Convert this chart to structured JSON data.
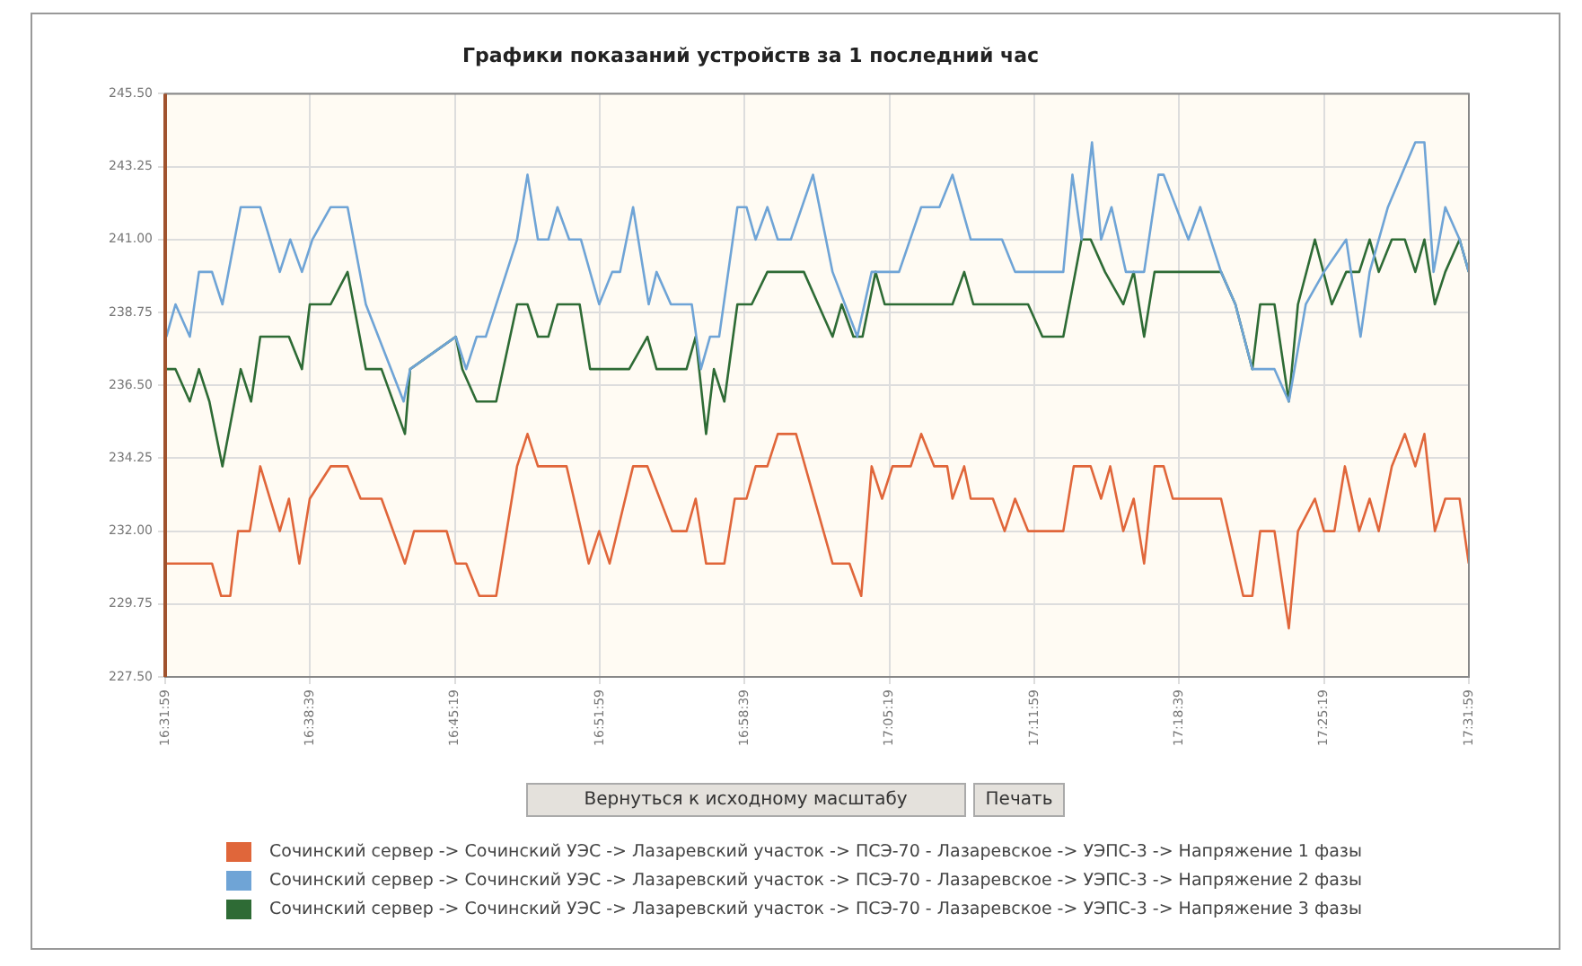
{
  "chart_data": {
    "type": "line",
    "title": "Графики показаний устройств за 1 последний час",
    "xlim": [
      16.5331,
      17.5331
    ],
    "xticks": [
      {
        "value": 16.5331,
        "label": "16:31:59"
      },
      {
        "value": 16.6442,
        "label": "16:38:39"
      },
      {
        "value": 16.7553,
        "label": "16:45:19"
      },
      {
        "value": 16.8664,
        "label": "16:51:59"
      },
      {
        "value": 16.9775,
        "label": "16:58:39"
      },
      {
        "value": 17.0886,
        "label": "17:05:19"
      },
      {
        "value": 17.1997,
        "label": "17:11:59"
      },
      {
        "value": 17.3108,
        "label": "17:18:39"
      },
      {
        "value": 17.4219,
        "label": "17:25:19"
      },
      {
        "value": 17.5331,
        "label": "17:31:59"
      }
    ],
    "ylim": [
      227.5,
      245.5
    ],
    "yticks": [
      {
        "value": 227.5,
        "label": "227.50"
      },
      {
        "value": 229.75,
        "label": "229.75"
      },
      {
        "value": 232,
        "label": "232.00"
      },
      {
        "value": 234.25,
        "label": "234.25"
      },
      {
        "value": 236.5,
        "label": "236.50"
      },
      {
        "value": 238.75,
        "label": "238.75"
      },
      {
        "value": 241,
        "label": "241.00"
      },
      {
        "value": 243.25,
        "label": "243.25"
      },
      {
        "value": 245.5,
        "label": "245.50"
      }
    ],
    "grid": true,
    "legend": "bottom",
    "marker": "none",
    "line_style": "solid",
    "annotations": [
      "Вернуться к исходному масштабу",
      "Печать"
    ],
    "series": [
      {
        "name": "Сочинский сервер -> Сочинский УЭС -> Лазаревский участок -> ПСЭ-70 - Лазаревское -> УЭПС-3 -> Напряжение 1 фазы",
        "color": "#e0663a",
        "x": [
          16.534,
          16.569,
          16.576,
          16.583,
          16.589,
          16.598,
          16.606,
          16.621,
          16.628,
          16.636,
          16.644,
          16.66,
          16.673,
          16.683,
          16.699,
          16.717,
          16.724,
          16.749,
          16.756,
          16.764,
          16.774,
          16.787,
          16.803,
          16.811,
          16.819,
          16.841,
          16.858,
          16.866,
          16.874,
          16.892,
          16.903,
          16.922,
          16.933,
          16.94,
          16.948,
          16.962,
          16.97,
          16.979,
          16.986,
          16.995,
          17.003,
          17.017,
          17.045,
          17.058,
          17.067,
          17.075,
          17.083,
          17.091,
          17.105,
          17.113,
          17.123,
          17.133,
          17.137,
          17.146,
          17.151,
          17.168,
          17.177,
          17.185,
          17.195,
          17.222,
          17.23,
          17.243,
          17.251,
          17.258,
          17.268,
          17.276,
          17.284,
          17.292,
          17.299,
          17.306,
          17.343,
          17.36,
          17.367,
          17.373,
          17.384,
          17.395,
          17.402,
          17.415,
          17.422,
          17.43,
          17.438,
          17.449,
          17.457,
          17.464,
          17.474,
          17.484,
          17.492,
          17.499,
          17.507,
          17.515,
          17.526,
          17.533
        ],
        "values": [
          231,
          231,
          230,
          230,
          232,
          232,
          234,
          232,
          233,
          231,
          233,
          234,
          234,
          233,
          233,
          231,
          232,
          232,
          231,
          231,
          230,
          230,
          234,
          235,
          234,
          234,
          231,
          232,
          231,
          234,
          234,
          232,
          232,
          233,
          231,
          231,
          233,
          233,
          234,
          234,
          235,
          235,
          231,
          231,
          230,
          234,
          233,
          234,
          234,
          235,
          234,
          234,
          233,
          234,
          233,
          233,
          232,
          233,
          232,
          232,
          234,
          234,
          233,
          234,
          232,
          233,
          231,
          234,
          234,
          233,
          233,
          230,
          230,
          232,
          232,
          229,
          232,
          233,
          232,
          232,
          234,
          232,
          233,
          232,
          234,
          235,
          234,
          235,
          232,
          233,
          233,
          231
        ]
      },
      {
        "name": "Сочинский сервер -> Сочинский УЭС -> Лазаревский участок -> ПСЭ-70 - Лазаревское -> УЭПС-3 -> Напряжение 2 фазы",
        "color": "#6fa4d6",
        "x": [
          16.534,
          16.541,
          16.552,
          16.559,
          16.569,
          16.577,
          16.591,
          16.606,
          16.621,
          16.629,
          16.638,
          16.646,
          16.66,
          16.673,
          16.687,
          16.716,
          16.721,
          16.756,
          16.764,
          16.772,
          16.779,
          16.803,
          16.811,
          16.819,
          16.827,
          16.834,
          16.843,
          16.852,
          16.866,
          16.876,
          16.882,
          16.892,
          16.904,
          16.91,
          16.921,
          16.937,
          16.944,
          16.951,
          16.958,
          16.972,
          16.979,
          16.986,
          16.995,
          17.003,
          17.013,
          17.03,
          17.045,
          17.064,
          17.075,
          17.096,
          17.113,
          17.127,
          17.137,
          17.151,
          17.175,
          17.185,
          17.222,
          17.229,
          17.236,
          17.244,
          17.251,
          17.259,
          17.27,
          17.284,
          17.295,
          17.299,
          17.318,
          17.327,
          17.343,
          17.354,
          17.367,
          17.384,
          17.395,
          17.408,
          17.422,
          17.439,
          17.45,
          17.457,
          17.471,
          17.492,
          17.499,
          17.506,
          17.515,
          17.526,
          17.533
        ],
        "values": [
          238,
          239,
          238,
          240,
          240,
          239,
          242,
          242,
          240,
          241,
          240,
          241,
          242,
          242,
          239,
          236,
          237,
          238,
          237,
          238,
          238,
          241,
          243,
          241,
          241,
          242,
          241,
          241,
          239,
          240,
          240,
          242,
          239,
          240,
          239,
          239,
          237,
          238,
          238,
          242,
          242,
          241,
          242,
          241,
          241,
          243,
          240,
          238,
          240,
          240,
          242,
          242,
          243,
          241,
          241,
          240,
          240,
          243,
          241,
          244,
          241,
          242,
          240,
          240,
          243,
          243,
          241,
          242,
          240,
          239,
          237,
          237,
          236,
          239,
          240,
          241,
          238,
          240,
          242,
          244,
          244,
          240,
          242,
          241,
          240
        ]
      },
      {
        "name": "Сочинский сервер -> Сочинский УЭС -> Лазаревский участок -> ПСЭ-70 - Лазаревское -> УЭПС-3 -> Напряжение 3 фазы",
        "color": "#2e6b35",
        "x": [
          16.534,
          16.541,
          16.552,
          16.559,
          16.567,
          16.577,
          16.591,
          16.599,
          16.606,
          16.628,
          16.638,
          16.644,
          16.66,
          16.673,
          16.687,
          16.699,
          16.717,
          16.721,
          16.756,
          16.761,
          16.772,
          16.787,
          16.803,
          16.811,
          16.819,
          16.827,
          16.834,
          16.851,
          16.859,
          16.889,
          16.903,
          16.91,
          16.933,
          16.94,
          16.948,
          16.954,
          16.962,
          16.972,
          16.983,
          16.995,
          17.023,
          17.034,
          17.045,
          17.052,
          17.061,
          17.068,
          17.078,
          17.085,
          17.137,
          17.146,
          17.153,
          17.195,
          17.206,
          17.222,
          17.236,
          17.243,
          17.254,
          17.268,
          17.276,
          17.284,
          17.292,
          17.343,
          17.354,
          17.367,
          17.373,
          17.384,
          17.395,
          17.402,
          17.415,
          17.428,
          17.439,
          17.449,
          17.457,
          17.464,
          17.474,
          17.484,
          17.492,
          17.499,
          17.507,
          17.515,
          17.526,
          17.533
        ],
        "values": [
          237,
          237,
          236,
          237,
          236,
          234,
          237,
          236,
          238,
          238,
          237,
          239,
          239,
          240,
          237,
          237,
          235,
          237,
          238,
          237,
          236,
          236,
          239,
          239,
          238,
          238,
          239,
          239,
          237,
          237,
          238,
          237,
          237,
          238,
          235,
          237,
          236,
          239,
          239,
          240,
          240,
          239,
          238,
          239,
          238,
          238,
          240,
          239,
          239,
          240,
          239,
          239,
          238,
          238,
          241,
          241,
          240,
          239,
          240,
          238,
          240,
          240,
          239,
          237,
          239,
          239,
          236,
          239,
          241,
          239,
          240,
          240,
          241,
          240,
          241,
          241,
          240,
          241,
          239,
          240,
          241,
          240
        ]
      }
    ]
  }
}
